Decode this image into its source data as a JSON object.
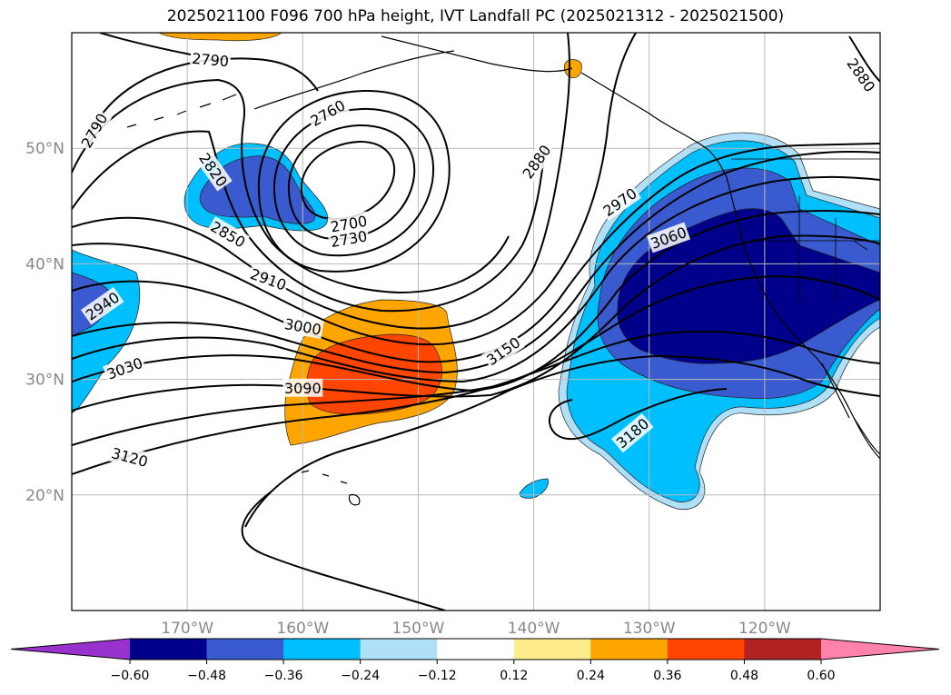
{
  "title": "2025021100 F096 700 hPa height, IVT Landfall PC (2025021312 - 2025021500)",
  "map": {
    "lon_range": [
      -180,
      -110
    ],
    "lat_range": [
      10,
      60
    ],
    "lat_ticks": [
      {
        "value": 50,
        "label": "50°N"
      },
      {
        "value": 40,
        "label": "40°N"
      },
      {
        "value": 30,
        "label": "30°N"
      },
      {
        "value": 20,
        "label": "20°N"
      }
    ],
    "lon_ticks": [
      {
        "value": -170,
        "label": "170°W"
      },
      {
        "value": -160,
        "label": "160°W"
      },
      {
        "value": -150,
        "label": "150°W"
      },
      {
        "value": -140,
        "label": "140°W"
      },
      {
        "value": -130,
        "label": "130°W"
      },
      {
        "value": -120,
        "label": "120°W"
      }
    ],
    "contour_labels": [
      {
        "text": "2790",
        "lon": -178,
        "lat": 51.5,
        "rot": -60
      },
      {
        "text": "2790",
        "lon": -168,
        "lat": 57.6,
        "rot": 5
      },
      {
        "text": "2760",
        "lon": -157.8,
        "lat": 53,
        "rot": -30
      },
      {
        "text": "2820",
        "lon": -167.8,
        "lat": 48.1,
        "rot": 55
      },
      {
        "text": "2850",
        "lon": -166.5,
        "lat": 42.5,
        "rot": 30
      },
      {
        "text": "2700",
        "lon": -156,
        "lat": 43.4,
        "rot": -10
      },
      {
        "text": "2730",
        "lon": -156,
        "lat": 42.1,
        "rot": -10
      },
      {
        "text": "2910",
        "lon": -163,
        "lat": 38.6,
        "rot": 20
      },
      {
        "text": "2940",
        "lon": -177.3,
        "lat": 36.3,
        "rot": -35
      },
      {
        "text": "3000",
        "lon": -160,
        "lat": 34.5,
        "rot": 10
      },
      {
        "text": "3030",
        "lon": -175.4,
        "lat": 30.9,
        "rot": -20
      },
      {
        "text": "3090",
        "lon": -160,
        "lat": 29.2,
        "rot": 0
      },
      {
        "text": "3120",
        "lon": -175,
        "lat": 23.2,
        "rot": 15
      },
      {
        "text": "2880",
        "lon": -139.7,
        "lat": 48.8,
        "rot": -55
      },
      {
        "text": "2970",
        "lon": -132.5,
        "lat": 45.3,
        "rot": -35
      },
      {
        "text": "3060",
        "lon": -128.3,
        "lat": 42.2,
        "rot": -20
      },
      {
        "text": "3150",
        "lon": -142.6,
        "lat": 32.4,
        "rot": -35
      },
      {
        "text": "3180",
        "lon": -131.4,
        "lat": 25.3,
        "rot": -40
      },
      {
        "text": "2880",
        "lon": -111.7,
        "lat": 56.3,
        "rot": 55
      }
    ]
  },
  "colorbar": {
    "tick_labels": [
      "−0.60",
      "−0.48",
      "−0.36",
      "−0.24",
      "−0.12",
      "0.12",
      "0.24",
      "0.36",
      "0.48",
      "0.60"
    ],
    "levels": [
      -0.6,
      -0.48,
      -0.36,
      -0.24,
      -0.12,
      0.12,
      0.24,
      0.36,
      0.48,
      0.6
    ],
    "colors": [
      "#9932CC",
      "#00008B",
      "#3A5BD0",
      "#00BFFF",
      "#B0E0F8",
      "#FFFFFF",
      "#FFEC8B",
      "#FFA500",
      "#FF4500",
      "#B22222",
      "#FF82AB"
    ]
  }
}
